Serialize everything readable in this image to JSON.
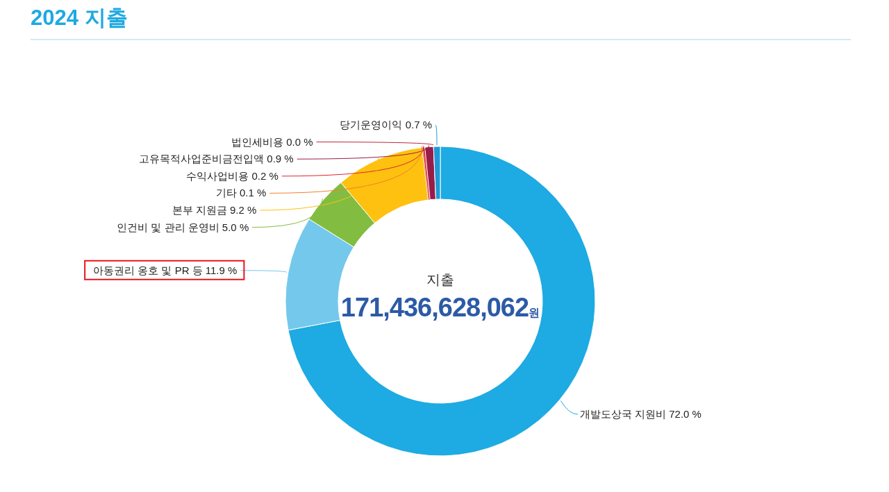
{
  "chart_data": {
    "type": "donut",
    "title": "2024 지출",
    "categories": [
      "개발도상국 지원비",
      "아동권리 옹호 및 PR 등",
      "인건비 및 관리 운영비",
      "본부 지원금",
      "기타",
      "수익사업비용",
      "고유목적사업준비금전입액",
      "법인세비용",
      "당기운영이익"
    ],
    "values": [
      72.0,
      11.9,
      5.0,
      9.2,
      0.1,
      0.2,
      0.9,
      0.0,
      0.7
    ],
    "value_labels": [
      "72.0 %",
      "11.9 %",
      "5.0 %",
      "9.2 %",
      "0.1 %",
      "0.2 %",
      "0.9 %",
      "0.0 %",
      "0.7 %"
    ],
    "colors": [
      "#1eaae2",
      "#74c8ec",
      "#82bd41",
      "#fec10f",
      "#f0812a",
      "#e0242c",
      "#981c4a",
      "#c0223f",
      "#1f9ad6"
    ],
    "annotations": [
      "지출",
      "171,436,628,062원"
    ]
  }
}
